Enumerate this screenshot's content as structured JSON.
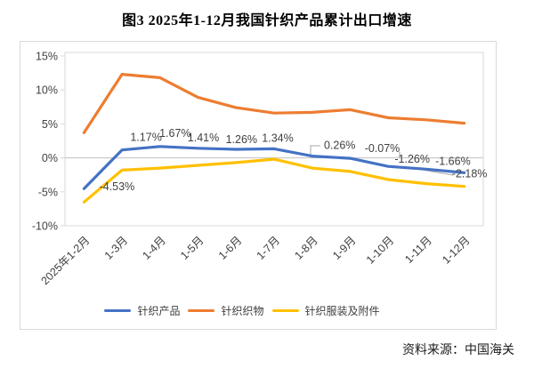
{
  "title": "图3  2025年1-12月我国针织产品累计出口增速",
  "source": "资料来源：中国海关",
  "chart_data": {
    "type": "line",
    "title": "图3  2025年1-12月我国针织产品累计出口增速",
    "categories": [
      "2025年1-2月",
      "1-3月",
      "1-4月",
      "1-5月",
      "1-6月",
      "1-7月",
      "1-8月",
      "1-9月",
      "1-10月",
      "1-11月",
      "1-12月"
    ],
    "series": [
      {
        "name": "针织产品",
        "color": "#4472C4",
        "values": [
          -4.53,
          1.17,
          1.67,
          1.41,
          1.26,
          1.34,
          0.26,
          -0.07,
          -1.26,
          -1.66,
          -2.18
        ],
        "point_labels": [
          "-4.53%",
          "1.17%",
          "1.67%",
          "1.41%",
          "1.26%",
          "1.34%",
          "0.26%",
          "-0.07%",
          "-1.26%",
          "-1.66%",
          "-2.18%"
        ],
        "label_offsets": [
          [
            37,
            2
          ],
          [
            27,
            -10
          ],
          [
            17,
            -11
          ],
          [
            6,
            -8
          ],
          [
            6,
            -7
          ],
          [
            4,
            -8
          ],
          [
            31,
            -8
          ],
          [
            36,
            -7
          ],
          [
            27,
            -4
          ],
          [
            30,
            -5
          ],
          [
            6,
            5
          ]
        ]
      },
      {
        "name": "针织织物",
        "color": "#ED7D31",
        "values": [
          3.7,
          12.3,
          11.8,
          8.9,
          7.4,
          6.6,
          6.7,
          7.1,
          5.9,
          5.6,
          5.1
        ]
      },
      {
        "name": "针织服装及附件",
        "color": "#FFC000",
        "values": [
          -6.5,
          -1.8,
          -1.5,
          -1.1,
          -0.7,
          -0.2,
          -1.5,
          -2.0,
          -3.2,
          -3.8,
          -4.2
        ]
      }
    ],
    "ylim": [
      -10,
      15
    ],
    "yticks": [
      {
        "value": 15,
        "label": "15%"
      },
      {
        "value": 10,
        "label": "10%"
      },
      {
        "value": 5,
        "label": "5%"
      },
      {
        "value": 0,
        "label": "0%"
      },
      {
        "value": -5,
        "label": "-5%"
      },
      {
        "value": -10,
        "label": "-10%"
      }
    ],
    "grid": "zero-line-only",
    "legend_position": "bottom",
    "colors": {
      "frame": "#d9d9d9",
      "zero_line": "#c0c0c0",
      "callout": "#a6a6a6",
      "text": "#404040"
    },
    "callouts": [
      "M326,127.3 L326,117 L337,117",
      "M426,124 L426,131",
      "M440,142 L486,150"
    ]
  }
}
